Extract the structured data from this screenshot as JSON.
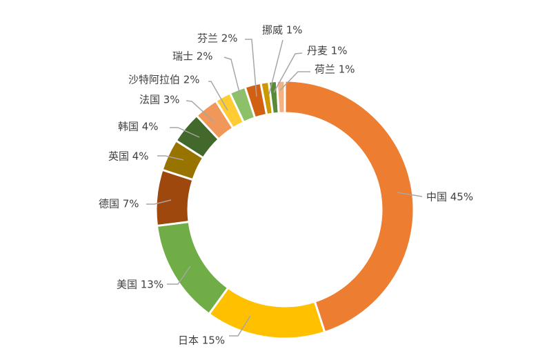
{
  "chart_data": {
    "type": "pie",
    "variant": "donut",
    "title": "",
    "legend": "none",
    "slices": [
      {
        "label": "中国",
        "value": 45,
        "color": "#ED7D31"
      },
      {
        "label": "日本",
        "value": 15,
        "color": "#FFC000"
      },
      {
        "label": "美国",
        "value": 13,
        "color": "#70AD47"
      },
      {
        "label": "德国",
        "value": 7,
        "color": "#9E480E"
      },
      {
        "label": "英国",
        "value": 4,
        "color": "#997300"
      },
      {
        "label": "韩国",
        "value": 4,
        "color": "#43682B"
      },
      {
        "label": "法国",
        "value": 3,
        "color": "#F1975A"
      },
      {
        "label": "沙特阿拉伯",
        "value": 2,
        "color": "#FFCD33"
      },
      {
        "label": "瑞士",
        "value": 2,
        "color": "#8CC168"
      },
      {
        "label": "芬兰",
        "value": 2,
        "color": "#D26012"
      },
      {
        "label": "挪威",
        "value": 1,
        "color": "#CC9A00"
      },
      {
        "label": "丹麦",
        "value": 1,
        "color": "#5A8A39"
      },
      {
        "label": "荷兰",
        "value": 1,
        "color": "#F4B183"
      }
    ]
  }
}
